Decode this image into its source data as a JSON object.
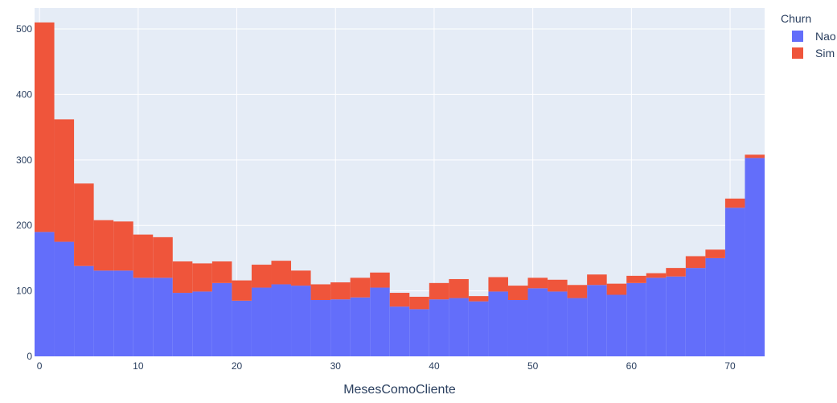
{
  "chart_data": {
    "type": "bar",
    "barmode": "stack",
    "xlabel": "MesesComoCliente",
    "ylabel": "",
    "title": "",
    "xlim": [
      -0.5,
      73.5
    ],
    "ylim": [
      0,
      532
    ],
    "xticks": [
      0,
      10,
      20,
      30,
      40,
      50,
      60,
      70
    ],
    "yticks": [
      0,
      100,
      200,
      300,
      400,
      500
    ],
    "grid": true,
    "legend_title": "Churn",
    "legend_position": "top-right",
    "bin_edges": [
      -0.5,
      1.5,
      3.5,
      5.5,
      7.5,
      9.5,
      11.5,
      13.5,
      15.5,
      17.5,
      19.5,
      21.5,
      23.5,
      25.5,
      27.5,
      29.5,
      31.5,
      33.5,
      35.5,
      37.5,
      39.5,
      41.5,
      43.5,
      45.5,
      47.5,
      49.5,
      51.5,
      53.5,
      55.5,
      57.5,
      59.5,
      61.5,
      63.5,
      65.5,
      67.5,
      69.5,
      71.5,
      73.5
    ],
    "series": [
      {
        "name": "Nao",
        "color": "#636efa",
        "values": [
          190,
          175,
          138,
          131,
          131,
          120,
          120,
          97,
          99,
          112,
          85,
          105,
          110,
          108,
          86,
          87,
          90,
          105,
          76,
          72,
          87,
          89,
          84,
          99,
          86,
          104,
          99,
          89,
          109,
          94,
          112,
          120,
          122,
          135,
          150,
          227,
          303
        ]
      },
      {
        "name": "Sim",
        "color": "#ef553b",
        "values": [
          320,
          187,
          126,
          77,
          75,
          66,
          62,
          48,
          43,
          33,
          31,
          35,
          36,
          23,
          24,
          26,
          30,
          23,
          21,
          19,
          25,
          29,
          8,
          22,
          22,
          16,
          18,
          20,
          16,
          17,
          11,
          7,
          13,
          18,
          13,
          14,
          5
        ]
      }
    ]
  }
}
